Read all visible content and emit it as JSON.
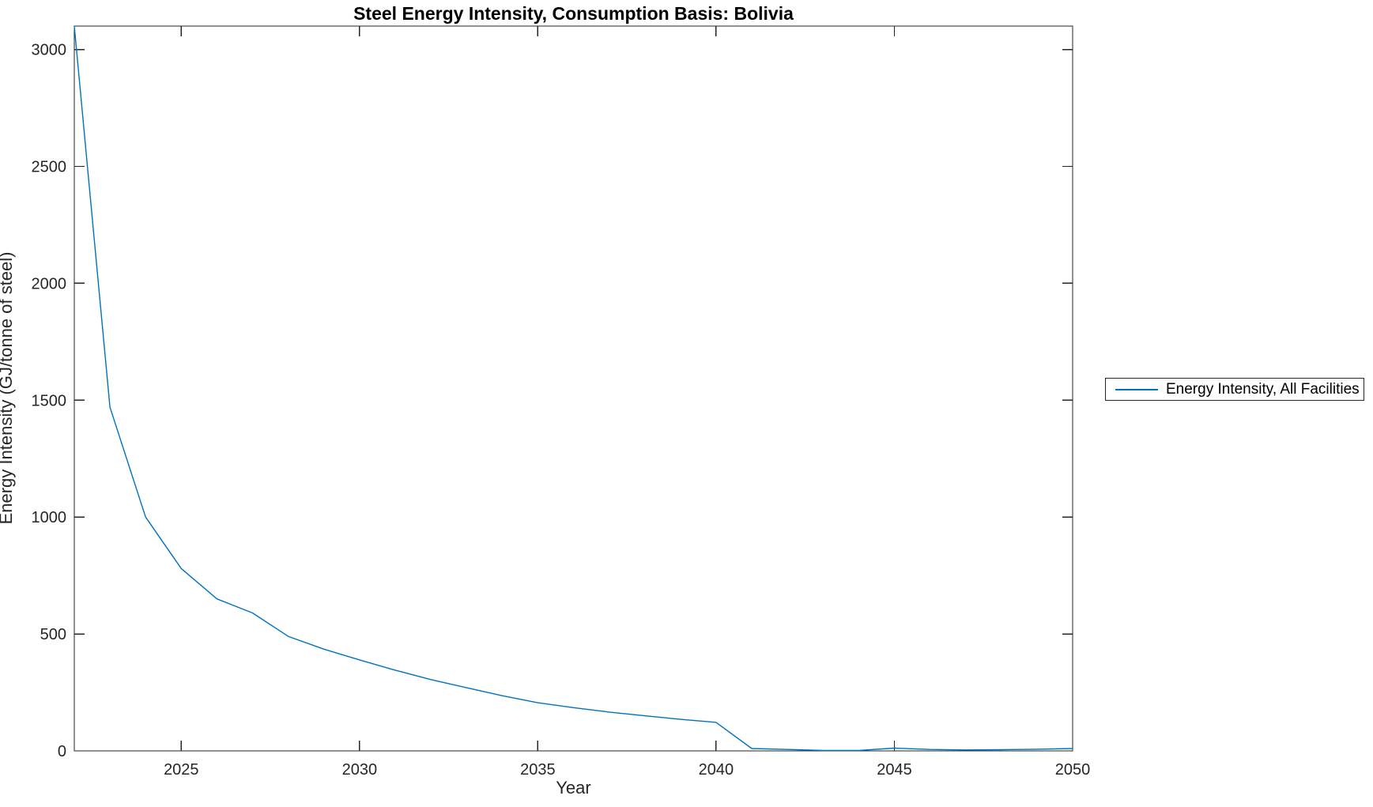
{
  "title": "Steel Energy Intensity, Consumption Basis: Bolivia",
  "colors": {
    "line": "#0072BD",
    "axis": "#262626",
    "tick_label": "#262626",
    "background": "#ffffff"
  },
  "legend": {
    "items": [
      {
        "label": "Energy Intensity, All Facilities",
        "color": "#0072BD"
      }
    ]
  },
  "chart_data": {
    "type": "line",
    "title": "Steel Energy Intensity, Consumption Basis: Bolivia",
    "xlabel": "Year",
    "ylabel": "Energy Intensity (GJ/tonne of steel)",
    "xlim": [
      2022,
      2050
    ],
    "ylim": [
      0,
      3100
    ],
    "xticks": [
      2025,
      2030,
      2035,
      2040,
      2045,
      2050
    ],
    "yticks": [
      0,
      500,
      1000,
      1500,
      2000,
      2500,
      3000
    ],
    "grid": false,
    "box": true,
    "tick_direction": "in",
    "legend_position": "outside-right",
    "series": [
      {
        "name": "Energy Intensity, All Facilities",
        "x": [
          2022,
          2023,
          2024,
          2025,
          2026,
          2027,
          2028,
          2029,
          2030,
          2031,
          2032,
          2033,
          2034,
          2035,
          2036,
          2037,
          2038,
          2039,
          2040,
          2041,
          2042,
          2043,
          2044,
          2045,
          2046,
          2047,
          2048,
          2049,
          2050
        ],
        "y": [
          3100,
          1470,
          1000,
          780,
          650,
          590,
          490,
          435,
          389,
          345,
          305,
          270,
          236,
          206,
          185,
          166,
          150,
          135,
          122,
          10,
          6,
          2,
          2,
          12,
          6,
          4,
          5,
          7,
          10
        ]
      }
    ]
  }
}
